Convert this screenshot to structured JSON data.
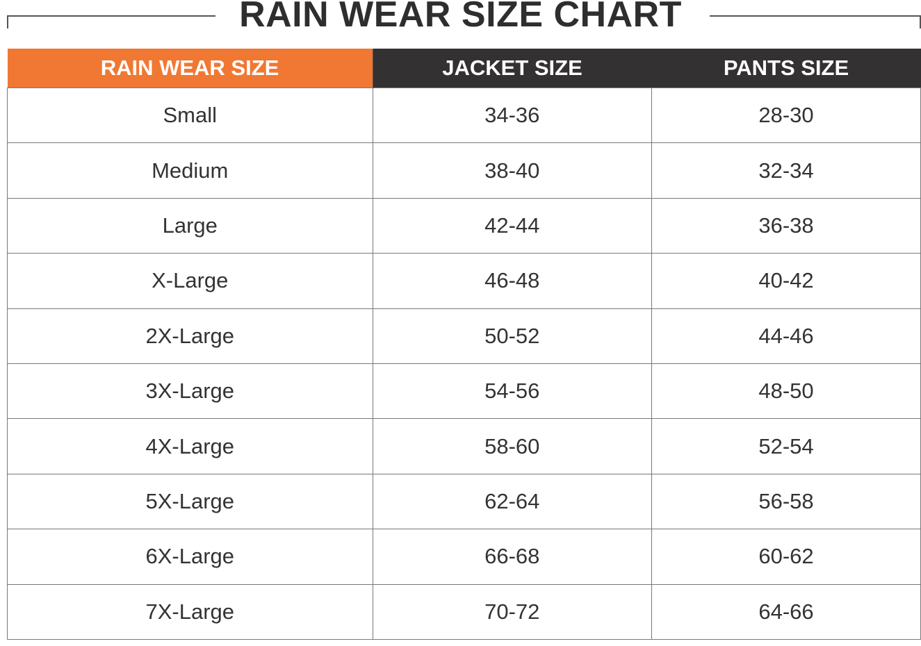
{
  "title": "RAIN WEAR SIZE CHART",
  "colors": {
    "header_accent": "#f07833",
    "header_dark": "#333132"
  },
  "table": {
    "headers": [
      "RAIN WEAR SIZE",
      "JACKET SIZE",
      "PANTS SIZE"
    ],
    "rows": [
      [
        "Small",
        "34-36",
        "28-30"
      ],
      [
        "Medium",
        "38-40",
        "32-34"
      ],
      [
        "Large",
        "42-44",
        "36-38"
      ],
      [
        "X-Large",
        "46-48",
        "40-42"
      ],
      [
        "2X-Large",
        "50-52",
        "44-46"
      ],
      [
        "3X-Large",
        "54-56",
        "48-50"
      ],
      [
        "4X-Large",
        "58-60",
        "52-54"
      ],
      [
        "5X-Large",
        "62-64",
        "56-58"
      ],
      [
        "6X-Large",
        "66-68",
        "60-62"
      ],
      [
        "7X-Large",
        "70-72",
        "64-66"
      ]
    ]
  }
}
